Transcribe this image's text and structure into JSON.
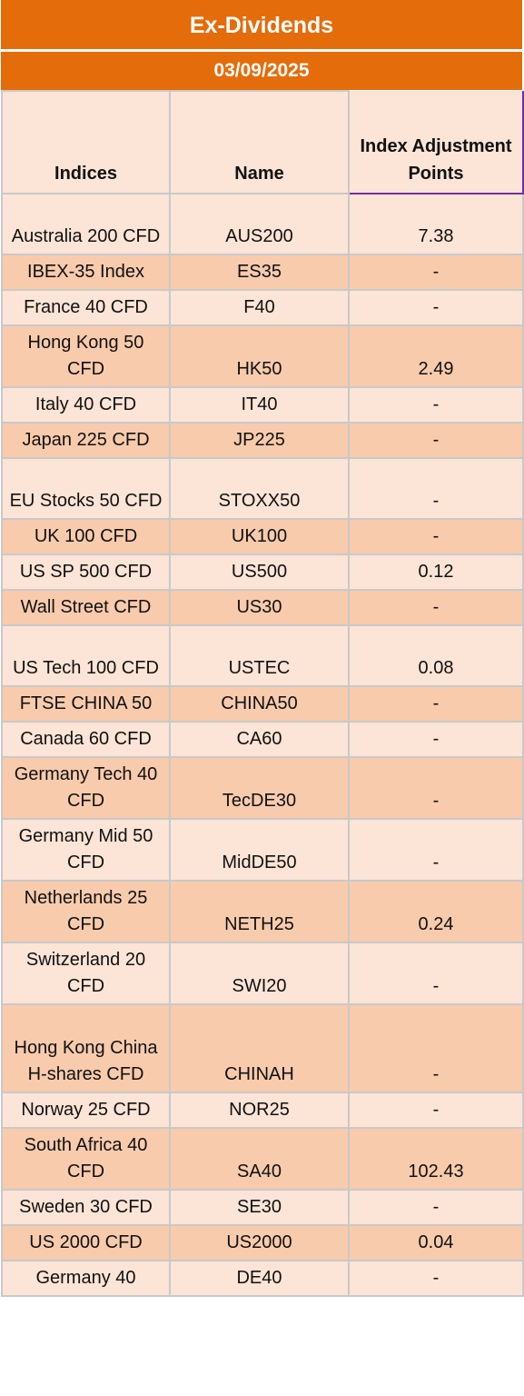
{
  "title": "Ex-Dividends",
  "date": "03/09/2025",
  "headers": {
    "indices": "Indices",
    "name": "Name",
    "adjustment": "Index Adjustment Points"
  },
  "rows": [
    {
      "index": "Australia 200 CFD",
      "name": "AUS200",
      "points": "7.38"
    },
    {
      "index": "IBEX-35 Index",
      "name": "ES35",
      "points": "-"
    },
    {
      "index": "France 40 CFD",
      "name": "F40",
      "points": "-"
    },
    {
      "index": "Hong Kong 50 CFD",
      "name": "HK50",
      "points": "2.49"
    },
    {
      "index": "Italy 40 CFD",
      "name": "IT40",
      "points": "-"
    },
    {
      "index": "Japan 225 CFD",
      "name": "JP225",
      "points": "-"
    },
    {
      "index": "EU Stocks 50 CFD",
      "name": "STOXX50",
      "points": "-"
    },
    {
      "index": "UK 100 CFD",
      "name": "UK100",
      "points": "-"
    },
    {
      "index": "US SP 500 CFD",
      "name": "US500",
      "points": "0.12"
    },
    {
      "index": "Wall Street CFD",
      "name": "US30",
      "points": "-"
    },
    {
      "index": "US Tech 100 CFD",
      "name": "USTEC",
      "points": "0.08"
    },
    {
      "index": "FTSE CHINA 50",
      "name": "CHINA50",
      "points": "-"
    },
    {
      "index": "Canada 60 CFD",
      "name": "CA60",
      "points": "-"
    },
    {
      "index": "Germany Tech 40 CFD",
      "name": "TecDE30",
      "points": "-"
    },
    {
      "index": "Germany Mid 50 CFD",
      "name": "MidDE50",
      "points": "-"
    },
    {
      "index": "Netherlands 25 CFD",
      "name": "NETH25",
      "points": "0.24"
    },
    {
      "index": "Switzerland 20 CFD",
      "name": "SWI20",
      "points": "-"
    },
    {
      "index": "Hong Kong China H-shares CFD",
      "name": "CHINAH",
      "points": "-"
    },
    {
      "index": "Norway 25 CFD",
      "name": "NOR25",
      "points": "-"
    },
    {
      "index": "South Africa 40 CFD",
      "name": "SA40",
      "points": "102.43"
    },
    {
      "index": "Sweden 30 CFD",
      "name": "SE30",
      "points": "-"
    },
    {
      "index": "US 2000 CFD",
      "name": "US2000",
      "points": "0.04"
    },
    {
      "index": "Germany 40",
      "name": "DE40",
      "points": "-"
    }
  ]
}
